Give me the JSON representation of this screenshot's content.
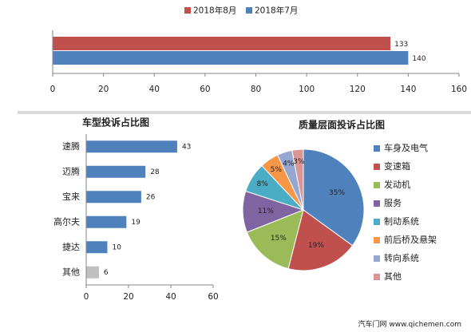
{
  "colors": {
    "aug": "#c0504d",
    "jul": "#4f81bd",
    "bar": "#4f81bd",
    "bar_other": "#bfbfbf",
    "axis": "#868686",
    "text": "#222222"
  },
  "chart_data": [
    {
      "type": "bar",
      "orientation": "horizontal",
      "legend": [
        "2018年8月",
        "2018年7月"
      ],
      "legend_placement": "top",
      "series": [
        {
          "name": "2018年8月",
          "values": [
            133
          ],
          "color": "#c0504d"
        },
        {
          "name": "2018年7月",
          "values": [
            140
          ],
          "color": "#4f81bd"
        }
      ],
      "xlim": [
        0,
        160
      ],
      "xticks": [
        0,
        20,
        40,
        60,
        80,
        100,
        120,
        140,
        160
      ],
      "grid": false
    },
    {
      "type": "bar",
      "orientation": "horizontal",
      "title": "车型投诉占比图",
      "categories": [
        "速腾",
        "迈腾",
        "宝来",
        "高尔夫",
        "捷达",
        "其他"
      ],
      "values": [
        43,
        28,
        26,
        19,
        10,
        6
      ],
      "xlim": [
        0,
        60
      ],
      "xticks": [
        0,
        20,
        40,
        60
      ],
      "grid": false
    },
    {
      "type": "pie",
      "title": "质量层面投诉占比图",
      "labels": [
        "车身及电气",
        "变速箱",
        "发动机",
        "服务",
        "制动系统",
        "前后桥及悬架",
        "转向系统",
        "其他"
      ],
      "values": [
        35,
        19,
        15,
        11,
        8,
        5,
        4,
        3
      ],
      "value_labels": [
        "35%",
        "19%",
        "15%",
        "11%",
        "8%",
        "5%",
        "4%",
        "3%"
      ],
      "colors": [
        "#4f81bd",
        "#c0504d",
        "#9bbb59",
        "#8064a2",
        "#4bacc6",
        "#f79646",
        "#95a7d1",
        "#d99694"
      ],
      "legend_placement": "right"
    }
  ],
  "footer": {
    "text": "汽车门网 www.qichemen.com"
  }
}
